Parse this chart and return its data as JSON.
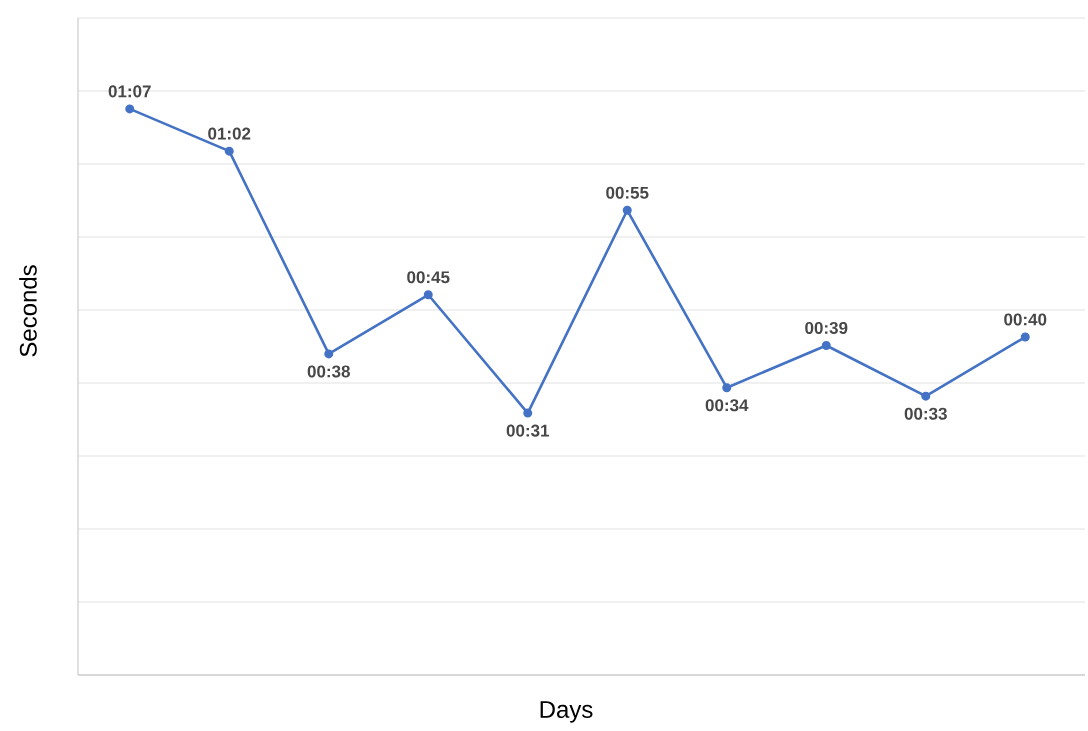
{
  "chart_data": {
    "type": "line",
    "xlabel": "Days",
    "ylabel": "Seconds",
    "categories": [
      null,
      null,
      null,
      null,
      null,
      null,
      null,
      null,
      null,
      null
    ],
    "values": [
      67,
      62,
      38,
      45,
      31,
      55,
      34,
      39,
      33,
      40
    ],
    "value_labels": [
      "01:07",
      "01:02",
      "00:38",
      "00:45",
      "00:31",
      "00:55",
      "00:34",
      "00:39",
      "00:33",
      "00:40"
    ],
    "color": "#4472c4",
    "marker": "circle",
    "grid": "y",
    "ylim": [
      0,
      77.76
    ],
    "yticks": [
      {
        "value": 0,
        "label": null
      },
      {
        "value": 8.64,
        "label": null
      },
      {
        "value": 17.28,
        "label": null
      },
      {
        "value": 25.92,
        "label": null
      },
      {
        "value": 34.56,
        "label": null
      },
      {
        "value": 43.2,
        "label": null
      },
      {
        "value": 51.84,
        "label": null
      },
      {
        "value": 60.48,
        "label": null
      },
      {
        "value": 69.12,
        "label": null
      },
      {
        "value": 77.76,
        "label": null
      }
    ]
  }
}
